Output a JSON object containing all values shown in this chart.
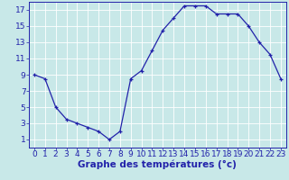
{
  "hours": [
    0,
    1,
    2,
    3,
    4,
    5,
    6,
    7,
    8,
    9,
    10,
    11,
    12,
    13,
    14,
    15,
    16,
    17,
    18,
    19,
    20,
    21,
    22,
    23
  ],
  "temps": [
    9,
    8.5,
    5,
    3.5,
    3,
    2.5,
    2,
    1,
    2,
    8.5,
    9.5,
    12,
    14.5,
    16,
    17.5,
    17.5,
    17.5,
    16.5,
    16.5,
    16.5,
    15,
    13,
    11.5,
    8.5
  ],
  "line_color": "#2222aa",
  "marker": "+",
  "bg_color": "#c8e8e8",
  "plot_bg_color": "#c8e8e8",
  "grid_color": "#ffffff",
  "xlabel": "Graphe des températures (°c)",
  "xlim_min": -0.5,
  "xlim_max": 23.5,
  "ylim_min": 0,
  "ylim_max": 18,
  "yticks": [
    1,
    3,
    5,
    7,
    9,
    11,
    13,
    15,
    17
  ],
  "xticks": [
    0,
    1,
    2,
    3,
    4,
    5,
    6,
    7,
    8,
    9,
    10,
    11,
    12,
    13,
    14,
    15,
    16,
    17,
    18,
    19,
    20,
    21,
    22,
    23
  ],
  "xlabel_color": "#2222aa",
  "tick_color": "#2222aa",
  "axis_color": "#2222aa",
  "font_size_xlabel": 7.5,
  "font_size_tick": 6.5,
  "marker_size": 3,
  "linewidth": 0.9
}
